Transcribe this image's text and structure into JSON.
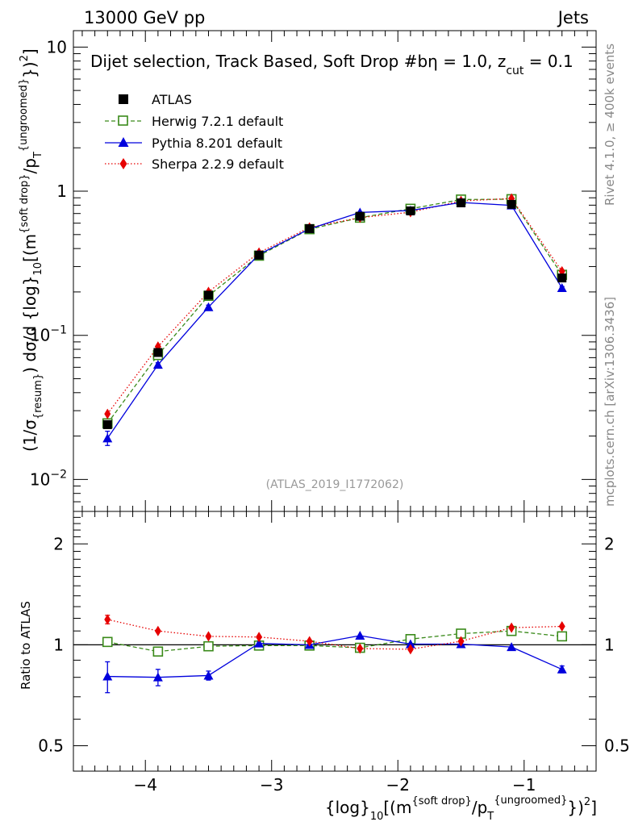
{
  "header": {
    "left": "13000 GeV pp",
    "right": "Jets"
  },
  "side_labels": {
    "top": "Rivet 4.1.0, ≥ 400k events",
    "bottom": "mcplots.cern.ch [arXiv:1306.3436]"
  },
  "analysis_id": "(ATLAS_2019_I1772062)",
  "colors": {
    "atlas": "#000000",
    "herwig": "#3a8a1a",
    "pythia": "#0000dd",
    "sherpa": "#e60000",
    "side_text": "#888888"
  },
  "chart_data": [
    {
      "type": "line",
      "title": "Dijet selection, Track Based, Soft Drop #bη = 1.0, z_cut = 0.1",
      "title_parts": {
        "main": "Dijet selection, Track Based, Soft Drop #bη = 1.0, z",
        "sub": "cut",
        "tail": " = 0.1"
      },
      "ylabel": "(1/σ_{resum}) dσ/d {log}_10[(m^{soft drop}/p_T^{ungroomed})^2]",
      "ylabel_parts": {
        "a": "(1/σ",
        "a_sub": "{resum}",
        "b": ") dσ/d {log}",
        "b_sub": "10",
        "c": "[(m",
        "c_sup": "{soft drop}",
        "d": "/p",
        "d_sub": "T",
        "d_sup": "{ungroomed}",
        "e": "})",
        "e_sup": "2",
        "f": "]"
      },
      "yscale": "log",
      "ylim": [
        0.006,
        13
      ],
      "xlim": [
        -4.57,
        -0.43
      ],
      "yticks": [
        {
          "value": 0.01,
          "base": "10",
          "exp": "−2"
        },
        {
          "value": 0.1,
          "base": "10",
          "exp": "−1"
        },
        {
          "value": 1,
          "base": "1",
          "exp": ""
        },
        {
          "value": 10,
          "base": "10",
          "exp": ""
        }
      ],
      "legend_position": "top-left",
      "x": [
        -4.3,
        -3.9,
        -3.5,
        -3.1,
        -2.7,
        -2.3,
        -1.9,
        -1.5,
        -1.1,
        -0.7
      ],
      "series": [
        {
          "name": "ATLAS",
          "marker": "square-filled",
          "line": "none",
          "values": [
            0.024,
            0.076,
            0.19,
            0.36,
            0.55,
            0.67,
            0.73,
            0.83,
            0.81,
            0.25
          ]
        },
        {
          "name": "Herwig 7.2.1 default",
          "marker": "square-open",
          "line": "dashed",
          "values": [
            0.0245,
            0.073,
            0.188,
            0.357,
            0.545,
            0.655,
            0.755,
            0.875,
            0.88,
            0.263
          ]
        },
        {
          "name": "Pythia 8.201 default",
          "marker": "triangle",
          "line": "solid",
          "values": [
            0.0193,
            0.0625,
            0.157,
            0.364,
            0.548,
            0.712,
            0.735,
            0.835,
            0.797,
            0.213
          ],
          "err_lo": [
            0.0172,
            0.0605,
            0.152,
            0.359,
            0.543,
            0.706,
            0.729,
            0.828,
            0.79,
            0.208
          ],
          "err_hi": [
            0.0216,
            0.0645,
            0.162,
            0.369,
            0.553,
            0.718,
            0.741,
            0.842,
            0.804,
            0.218
          ]
        },
        {
          "name": "Sherpa 2.2.9 default",
          "marker": "diamond",
          "line": "dotted",
          "values": [
            0.0285,
            0.0835,
            0.2,
            0.375,
            0.56,
            0.655,
            0.715,
            0.855,
            0.89,
            0.278
          ]
        }
      ]
    },
    {
      "type": "line",
      "ylabel": "Ratio to ATLAS",
      "xlabel": "{log}_10[(m^{soft drop}/p_T^{ungroomed})^2]",
      "xlabel_parts": {
        "a": "{log}",
        "a_sub": "10",
        "b": "[(m",
        "b_sup": "{soft drop}",
        "c": "/p",
        "c_sub": "T",
        "c_sup": "{ungroomed}",
        "d": "})",
        "d_sup": "2",
        "e": "]"
      },
      "yscale": "log",
      "ylim": [
        0.42,
        2.5
      ],
      "xlim": [
        -4.57,
        -0.43
      ],
      "yticks": [
        0.5,
        1,
        2
      ],
      "ytick_labels": [
        "0.5",
        "1",
        "2"
      ],
      "xticks": [
        -4,
        -3,
        -2,
        -1
      ],
      "xtick_labels": [
        "−4",
        "−3",
        "−2",
        "−1"
      ],
      "reference_line": 1,
      "x": [
        -4.3,
        -3.9,
        -3.5,
        -3.1,
        -2.7,
        -2.3,
        -1.9,
        -1.5,
        -1.1,
        -0.7
      ],
      "series": [
        {
          "name": "Herwig 7.2.1 default",
          "marker": "square-open",
          "line": "dashed",
          "values": [
            1.02,
            0.955,
            0.99,
            0.995,
            0.995,
            0.98,
            1.04,
            1.08,
            1.1,
            1.06
          ],
          "err_lo": [
            0.99,
            0.955,
            0.99,
            0.995,
            0.995,
            0.98,
            1.04,
            1.08,
            1.1,
            1.06
          ],
          "err_hi": [
            1.05,
            0.955,
            0.99,
            0.995,
            0.995,
            0.98,
            1.04,
            1.08,
            1.1,
            1.06
          ]
        },
        {
          "name": "Pythia 8.201 default",
          "marker": "triangle",
          "line": "solid",
          "values": [
            0.805,
            0.8,
            0.81,
            1.01,
            1.0,
            1.065,
            1.005,
            1.005,
            0.985,
            0.845
          ],
          "err_lo": [
            0.72,
            0.755,
            0.785,
            1.01,
            1.0,
            1.065,
            1.005,
            1.005,
            0.985,
            0.825
          ],
          "err_hi": [
            0.89,
            0.845,
            0.835,
            1.01,
            1.0,
            1.065,
            1.005,
            1.005,
            0.985,
            0.865
          ]
        },
        {
          "name": "Sherpa 2.2.9 default",
          "marker": "diamond",
          "line": "dotted",
          "values": [
            1.19,
            1.1,
            1.06,
            1.055,
            1.025,
            0.975,
            0.97,
            1.025,
            1.125,
            1.135
          ],
          "err_lo": [
            1.155,
            1.1,
            1.06,
            1.055,
            1.025,
            0.975,
            0.97,
            1.025,
            1.125,
            1.135
          ],
          "err_hi": [
            1.225,
            1.1,
            1.06,
            1.055,
            1.025,
            0.975,
            0.97,
            1.025,
            1.125,
            1.135
          ]
        }
      ]
    }
  ]
}
